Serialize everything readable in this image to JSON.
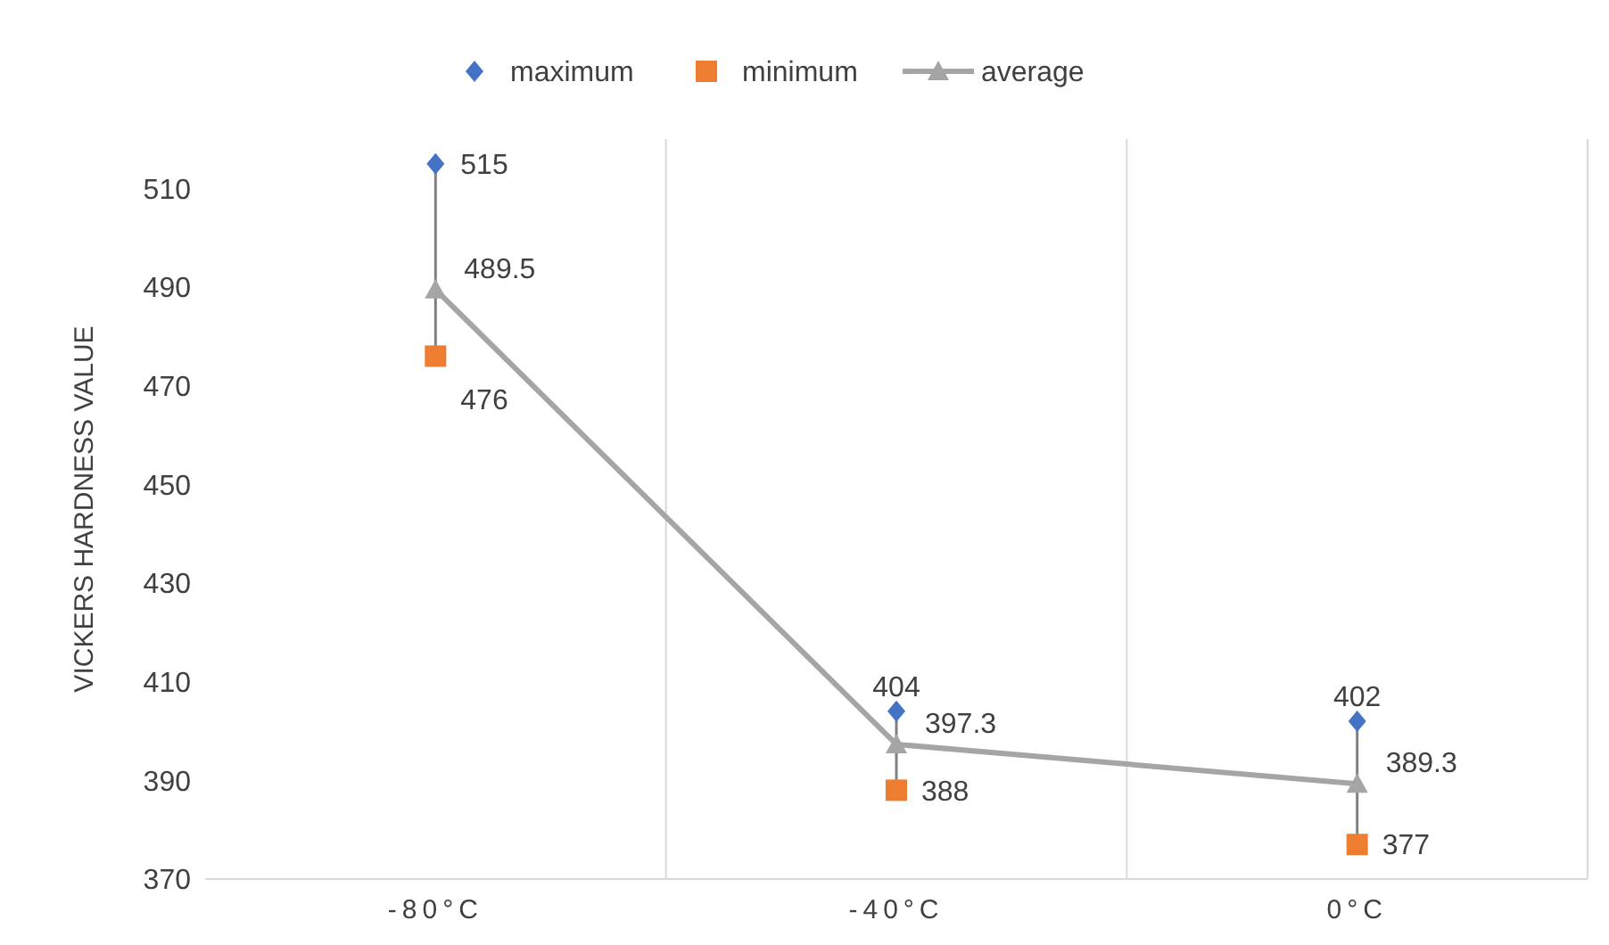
{
  "chart_data": {
    "type": "line",
    "ylabel": "VICKERS HARDNESS VALUE",
    "categories": [
      "-80°C",
      "-40°C",
      "0°C"
    ],
    "series": [
      {
        "name": "maximum",
        "type": "scatter",
        "color": "#4472c4",
        "marker": "diamond",
        "values": [
          515,
          404,
          402
        ]
      },
      {
        "name": "minimum",
        "type": "scatter",
        "color": "#ed7d31",
        "marker": "square",
        "values": [
          476,
          388,
          377
        ]
      },
      {
        "name": "average",
        "color": "#a5a5a5",
        "marker": "triangle",
        "values": [
          489.5,
          397.3,
          389.3
        ]
      }
    ],
    "ylim": [
      370,
      520
    ],
    "yticks": [
      370,
      390,
      410,
      430,
      450,
      470,
      490,
      510
    ],
    "grid": "x",
    "legend": "top",
    "data_labels": true
  }
}
